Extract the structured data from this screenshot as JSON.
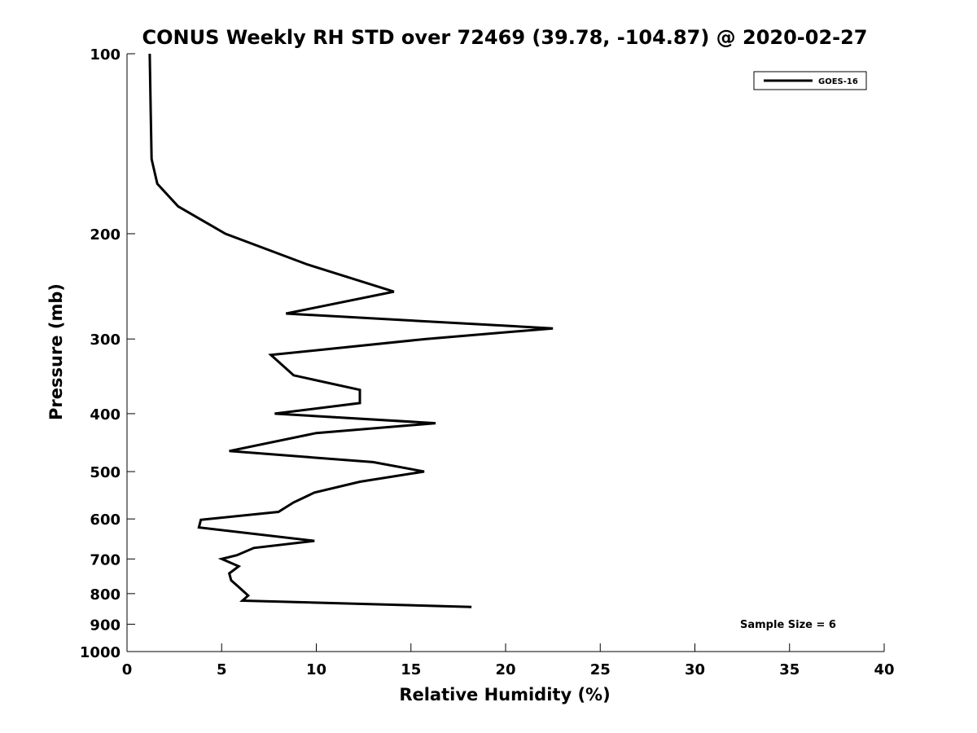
{
  "chart_data": {
    "type": "line",
    "title": "CONUS Weekly RH STD over 72469 (39.78, -104.87) @ 2020-02-27",
    "xlabel": "Relative Humidity (%)",
    "ylabel": "Pressure (mb)",
    "xlim": [
      0,
      40
    ],
    "ylim": [
      100,
      1000
    ],
    "y_scale": "log",
    "y_reversed": true,
    "xticks": [
      0,
      5,
      10,
      15,
      20,
      25,
      30,
      35,
      40
    ],
    "yticks": [
      100,
      200,
      300,
      400,
      500,
      600,
      700,
      800,
      900,
      1000
    ],
    "grid": false,
    "legend_position": "top-right",
    "series": [
      {
        "name": "GOES-16",
        "color": "#000000",
        "points": [
          [
            1.2,
            100
          ],
          [
            1.25,
            125
          ],
          [
            1.3,
            150
          ],
          [
            1.6,
            165
          ],
          [
            2.7,
            180
          ],
          [
            5.2,
            200
          ],
          [
            9.5,
            225
          ],
          [
            14.1,
            250
          ],
          [
            8.4,
            272
          ],
          [
            22.5,
            288
          ],
          [
            15.8,
            300
          ],
          [
            7.6,
            319
          ],
          [
            8.8,
            345
          ],
          [
            12.3,
            365
          ],
          [
            12.3,
            384
          ],
          [
            7.8,
            400
          ],
          [
            16.3,
            415
          ],
          [
            10.0,
            431
          ],
          [
            5.4,
            462
          ],
          [
            13.0,
            482
          ],
          [
            15.7,
            500
          ],
          [
            12.3,
            520
          ],
          [
            9.9,
            542
          ],
          [
            8.8,
            563
          ],
          [
            8.0,
            584
          ],
          [
            3.9,
            602
          ],
          [
            3.8,
            620
          ],
          [
            9.9,
            653
          ],
          [
            6.7,
            671
          ],
          [
            5.8,
            690
          ],
          [
            5.0,
            700
          ],
          [
            5.9,
            720
          ],
          [
            5.4,
            740
          ],
          [
            5.5,
            760
          ],
          [
            5.9,
            780
          ],
          [
            6.4,
            806
          ],
          [
            6.1,
            822
          ],
          [
            18.2,
            842
          ]
        ]
      }
    ],
    "annotations": [
      "Sample Size = 6"
    ]
  },
  "colors": {
    "line": "#000000",
    "axis": "#000000",
    "background": "#ffffff"
  }
}
